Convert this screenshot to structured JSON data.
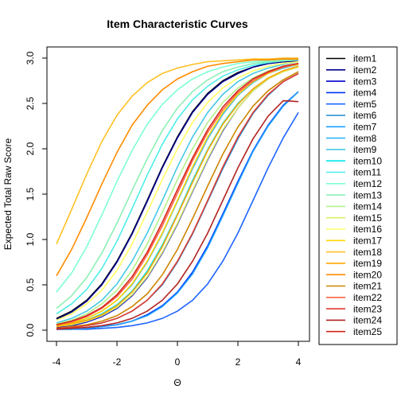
{
  "chart_data": {
    "type": "line",
    "title": "Item Characteristic Curves",
    "xlabel": "Θ",
    "ylabel": "Expected Total Raw Score",
    "xlim": [
      -4,
      4
    ],
    "ylim": [
      0,
      3
    ],
    "xticks": [
      -4,
      -2,
      0,
      2,
      4
    ],
    "yticks": [
      0.0,
      0.5,
      1.0,
      1.5,
      2.0,
      2.5,
      3.0
    ],
    "ytick_labels": [
      "0.0",
      "0.5",
      "1.0",
      "1.5",
      "2.0",
      "2.5",
      "3.0"
    ],
    "grid": false,
    "legend_position": "right",
    "x": [
      -4,
      -3.5,
      -3,
      -2.5,
      -2,
      -1.5,
      -1,
      -0.5,
      0,
      0.5,
      1,
      1.5,
      2,
      2.5,
      3,
      3.5,
      4
    ],
    "series": [
      {
        "name": "item1",
        "color": "#000000",
        "values": [
          0.13,
          0.21,
          0.33,
          0.51,
          0.76,
          1.07,
          1.43,
          1.8,
          2.13,
          2.41,
          2.61,
          2.75,
          2.84,
          2.9,
          2.94,
          2.96,
          2.97
        ]
      },
      {
        "name": "item2",
        "color": "#00008B",
        "values": [
          0.12,
          0.2,
          0.32,
          0.5,
          0.75,
          1.06,
          1.42,
          1.79,
          2.12,
          2.4,
          2.6,
          2.74,
          2.83,
          2.9,
          2.94,
          2.96,
          2.97
        ]
      },
      {
        "name": "item3",
        "color": "#0000CD",
        "values": [
          0.03,
          0.05,
          0.09,
          0.15,
          0.24,
          0.38,
          0.58,
          0.85,
          1.17,
          1.53,
          1.88,
          2.2,
          2.45,
          2.64,
          2.77,
          2.86,
          2.91
        ]
      },
      {
        "name": "item4",
        "color": "#0033FF",
        "values": [
          0.01,
          0.01,
          0.02,
          0.04,
          0.06,
          0.1,
          0.17,
          0.27,
          0.42,
          0.64,
          0.93,
          1.28,
          1.64,
          1.98,
          2.26,
          2.48,
          2.63
        ]
      },
      {
        "name": "item5",
        "color": "#1E64FF",
        "values": [
          0.01,
          0.01,
          0.01,
          0.02,
          0.03,
          0.05,
          0.08,
          0.13,
          0.21,
          0.33,
          0.51,
          0.76,
          1.07,
          1.43,
          1.79,
          2.12,
          2.4
        ]
      },
      {
        "name": "item6",
        "color": "#1E8CD2",
        "values": [
          0.02,
          0.03,
          0.05,
          0.08,
          0.13,
          0.21,
          0.33,
          0.5,
          0.75,
          1.06,
          1.42,
          1.78,
          2.11,
          2.39,
          2.59,
          2.74,
          2.83
        ]
      },
      {
        "name": "item7",
        "color": "#1EA0FF",
        "values": [
          0.01,
          0.01,
          0.02,
          0.04,
          0.06,
          0.1,
          0.16,
          0.26,
          0.41,
          0.62,
          0.91,
          1.26,
          1.62,
          1.97,
          2.25,
          2.47,
          2.63
        ]
      },
      {
        "name": "item8",
        "color": "#32B4FF",
        "values": [
          0.05,
          0.08,
          0.13,
          0.21,
          0.33,
          0.5,
          0.75,
          1.06,
          1.42,
          1.78,
          2.11,
          2.38,
          2.59,
          2.73,
          2.83,
          2.89,
          2.93
        ]
      },
      {
        "name": "item9",
        "color": "#46C8E6",
        "values": [
          0.08,
          0.13,
          0.21,
          0.33,
          0.51,
          0.76,
          1.07,
          1.43,
          1.8,
          2.13,
          2.4,
          2.6,
          2.74,
          2.83,
          2.89,
          2.93,
          2.96
        ]
      },
      {
        "name": "item10",
        "color": "#00E5EE",
        "values": [
          0.04,
          0.07,
          0.11,
          0.18,
          0.28,
          0.43,
          0.65,
          0.94,
          1.28,
          1.65,
          1.99,
          2.28,
          2.5,
          2.66,
          2.78,
          2.86,
          2.91
        ]
      },
      {
        "name": "item11",
        "color": "#4DEEEA",
        "values": [
          0.18,
          0.29,
          0.45,
          0.68,
          0.98,
          1.34,
          1.71,
          2.05,
          2.33,
          2.54,
          2.69,
          2.8,
          2.87,
          2.92,
          2.95,
          2.97,
          2.98
        ]
      },
      {
        "name": "item12",
        "color": "#7FFFD4",
        "values": [
          0.42,
          0.63,
          0.92,
          1.27,
          1.64,
          1.98,
          2.27,
          2.49,
          2.65,
          2.77,
          2.85,
          2.9,
          2.94,
          2.96,
          2.97,
          2.98,
          2.99
        ]
      },
      {
        "name": "item13",
        "color": "#8CF0B4",
        "values": [
          0.24,
          0.38,
          0.58,
          0.85,
          1.18,
          1.54,
          1.89,
          2.2,
          2.45,
          2.63,
          2.76,
          2.85,
          2.9,
          2.94,
          2.96,
          2.97,
          2.98
        ]
      },
      {
        "name": "item14",
        "color": "#B4F08C",
        "values": [
          0.07,
          0.11,
          0.18,
          0.29,
          0.44,
          0.66,
          0.95,
          1.3,
          1.66,
          2.0,
          2.29,
          2.51,
          2.67,
          2.78,
          2.86,
          2.91,
          2.94
        ]
      },
      {
        "name": "item15",
        "color": "#DCF064",
        "values": [
          0.04,
          0.06,
          0.1,
          0.16,
          0.25,
          0.39,
          0.59,
          0.86,
          1.18,
          1.54,
          1.89,
          2.21,
          2.45,
          2.64,
          2.77,
          2.85,
          2.9
        ]
      },
      {
        "name": "item16",
        "color": "#FFFF66",
        "values": [
          0.11,
          0.18,
          0.29,
          0.44,
          0.66,
          0.95,
          1.3,
          1.66,
          2.0,
          2.29,
          2.51,
          2.67,
          2.78,
          2.86,
          2.91,
          2.94,
          2.96
        ]
      },
      {
        "name": "item17",
        "color": "#FFD700",
        "values": [
          0.05,
          0.08,
          0.13,
          0.21,
          0.33,
          0.51,
          0.76,
          1.07,
          1.43,
          1.8,
          2.13,
          2.4,
          2.6,
          2.74,
          2.83,
          2.9,
          2.93
        ]
      },
      {
        "name": "item18",
        "color": "#FFC125",
        "values": [
          0.95,
          1.33,
          1.72,
          2.08,
          2.37,
          2.58,
          2.73,
          2.83,
          2.89,
          2.93,
          2.96,
          2.97,
          2.98,
          2.99,
          2.99,
          3.0,
          3.0
        ]
      },
      {
        "name": "item19",
        "color": "#FFA500",
        "values": [
          0.04,
          0.07,
          0.11,
          0.17,
          0.27,
          0.42,
          0.63,
          0.92,
          1.27,
          1.63,
          1.98,
          2.27,
          2.49,
          2.66,
          2.78,
          2.86,
          2.91
        ]
      },
      {
        "name": "item20",
        "color": "#FF8C00",
        "values": [
          0.6,
          0.89,
          1.24,
          1.61,
          1.96,
          2.26,
          2.48,
          2.65,
          2.77,
          2.85,
          2.91,
          2.94,
          2.96,
          2.98,
          2.98,
          2.99,
          2.99
        ]
      },
      {
        "name": "item21",
        "color": "#CD8500",
        "values": [
          0.02,
          0.04,
          0.06,
          0.1,
          0.16,
          0.26,
          0.4,
          0.61,
          0.89,
          1.23,
          1.59,
          1.94,
          2.24,
          2.47,
          2.64,
          2.76,
          2.85
        ]
      },
      {
        "name": "item22",
        "color": "#FF6347",
        "values": [
          0.06,
          0.09,
          0.15,
          0.24,
          0.37,
          0.56,
          0.83,
          1.15,
          1.51,
          1.87,
          2.18,
          2.43,
          2.62,
          2.75,
          2.84,
          2.9,
          2.94
        ]
      },
      {
        "name": "item23",
        "color": "#E03C31",
        "values": [
          0.02,
          0.03,
          0.05,
          0.08,
          0.13,
          0.21,
          0.33,
          0.51,
          0.76,
          1.07,
          1.43,
          1.8,
          2.13,
          2.4,
          2.6,
          2.74,
          2.83
        ]
      },
      {
        "name": "item24",
        "color": "#B22222",
        "values": [
          0.01,
          0.02,
          0.03,
          0.05,
          0.08,
          0.13,
          0.21,
          0.33,
          0.51,
          0.76,
          1.07,
          1.43,
          1.79,
          2.11,
          2.36,
          2.53,
          2.52
        ]
      },
      {
        "name": "item25",
        "color": "#D2261E",
        "values": [
          0.06,
          0.1,
          0.16,
          0.25,
          0.39,
          0.59,
          0.86,
          1.19,
          1.55,
          1.9,
          2.21,
          2.46,
          2.64,
          2.77,
          2.85,
          2.91,
          2.94
        ]
      }
    ]
  }
}
